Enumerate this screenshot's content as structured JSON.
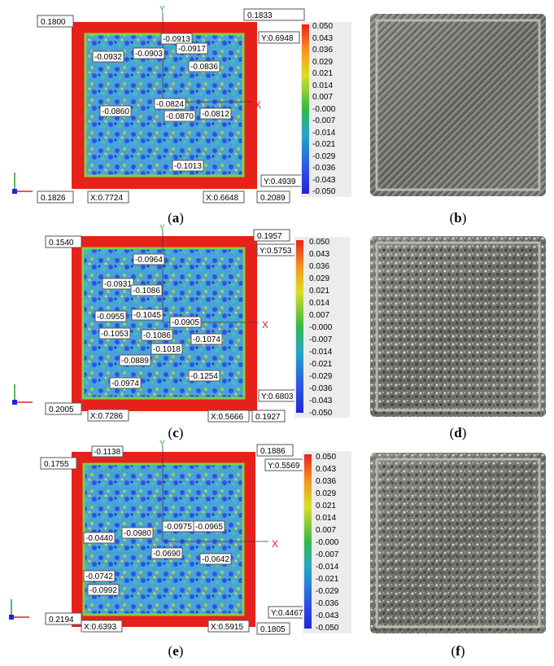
{
  "figure": {
    "colorbar": {
      "ticks": [
        "0.050",
        "0.043",
        "0.036",
        "0.029",
        "0.021",
        "0.014",
        "0.007",
        "-0.000",
        "-0.007",
        "-0.014",
        "-0.021",
        "-0.029",
        "-0.036",
        "-0.043",
        "-0.050"
      ],
      "colors": [
        "#e8201a",
        "#f2561d",
        "#f7931e",
        "#f2c21b",
        "#d9e021",
        "#a6d52c",
        "#6cc745",
        "#33b94a",
        "#22b29c",
        "#25a6c8",
        "#2990d8",
        "#2d74e0",
        "#2f55e4",
        "#2d38e1",
        "#2424d6"
      ]
    },
    "axes": {
      "x_label": "X",
      "y_label": "Y"
    },
    "maps": [
      {
        "caption": "a",
        "corner_values": [
          "0.1800",
          "0.1833",
          "0.1826",
          "0.2089"
        ],
        "coord_labels": [
          "Y:0.6948",
          "Y:0.4939",
          "X:0.7724",
          "X:0.6648"
        ],
        "point_values": [
          "-0.0913",
          "-0.0932",
          "-0.0903",
          "-0.0917",
          "-0.0836",
          "-0.0860",
          "-0.0824",
          "-0.0870",
          "-0.0812",
          "-0.1013"
        ]
      },
      {
        "caption": "c",
        "corner_values": [
          "0.1540",
          "0.1957",
          "0.2005",
          "0.1927"
        ],
        "coord_labels": [
          "Y:0.5753",
          "Y:0.6803",
          "X:0.7286",
          "X:0.5666"
        ],
        "point_values": [
          "-0.0964",
          "-0.0931",
          "-0.1086",
          "-0.0955",
          "-0.1045",
          "-0.0905",
          "-0.1053",
          "-0.1086",
          "-0.1074",
          "-0.1018",
          "-0.0889",
          "-0.0974",
          "-0.1254"
        ]
      },
      {
        "caption": "e",
        "corner_values": [
          "0.1755",
          "0.1886",
          "0.2194",
          "0.1805"
        ],
        "coord_labels": [
          "Y:0.5569",
          "Y:0.4467",
          "X:0.6393",
          "X:0.5915"
        ],
        "point_values": [
          "-0.1138",
          "-0.0980",
          "-0.0975",
          "-0.0965",
          "-0.0440",
          "-0.0690",
          "-0.0642",
          "-0.0742",
          "-0.0992"
        ]
      }
    ],
    "photos": [
      {
        "caption": "b"
      },
      {
        "caption": "d"
      },
      {
        "caption": "f"
      }
    ]
  }
}
